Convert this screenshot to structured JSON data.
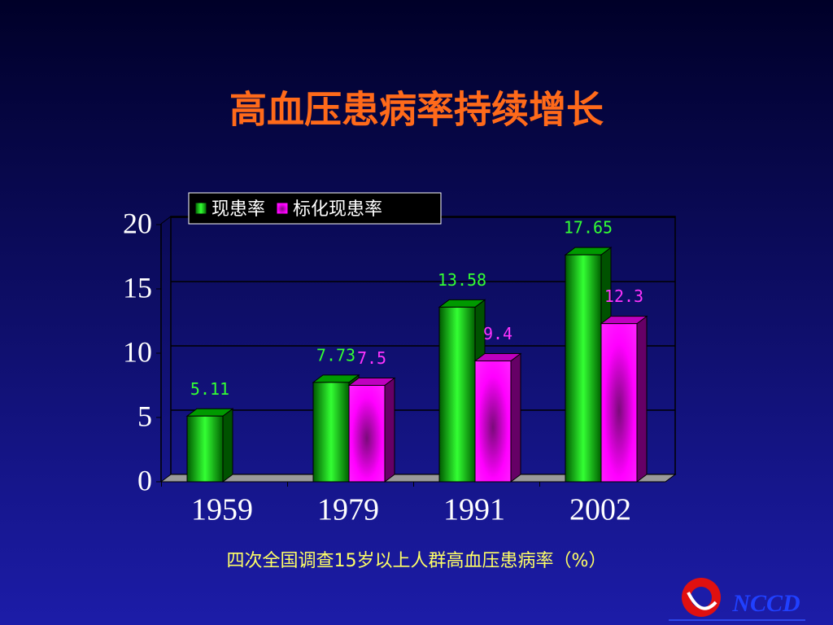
{
  "chart_data": {
    "type": "bar3d",
    "title": "高血压患病率持续增长",
    "x_label": "四次全国调查15岁以上人群高血压患病率（%）",
    "categories": [
      "1959",
      "1979",
      "1991",
      "2002"
    ],
    "series": [
      {
        "name": "现患率",
        "color": "#00cc00",
        "values": [
          5.11,
          7.73,
          13.58,
          17.65
        ]
      },
      {
        "name": "标化现患率",
        "color": "#ff00ff",
        "values": [
          null,
          7.5,
          9.4,
          12.3
        ]
      }
    ],
    "ylim": [
      0,
      20
    ],
    "yticks": [
      0,
      5,
      10,
      15,
      20
    ],
    "grid": true,
    "legend": "top-left"
  },
  "logo": {
    "text": "NCCD"
  }
}
